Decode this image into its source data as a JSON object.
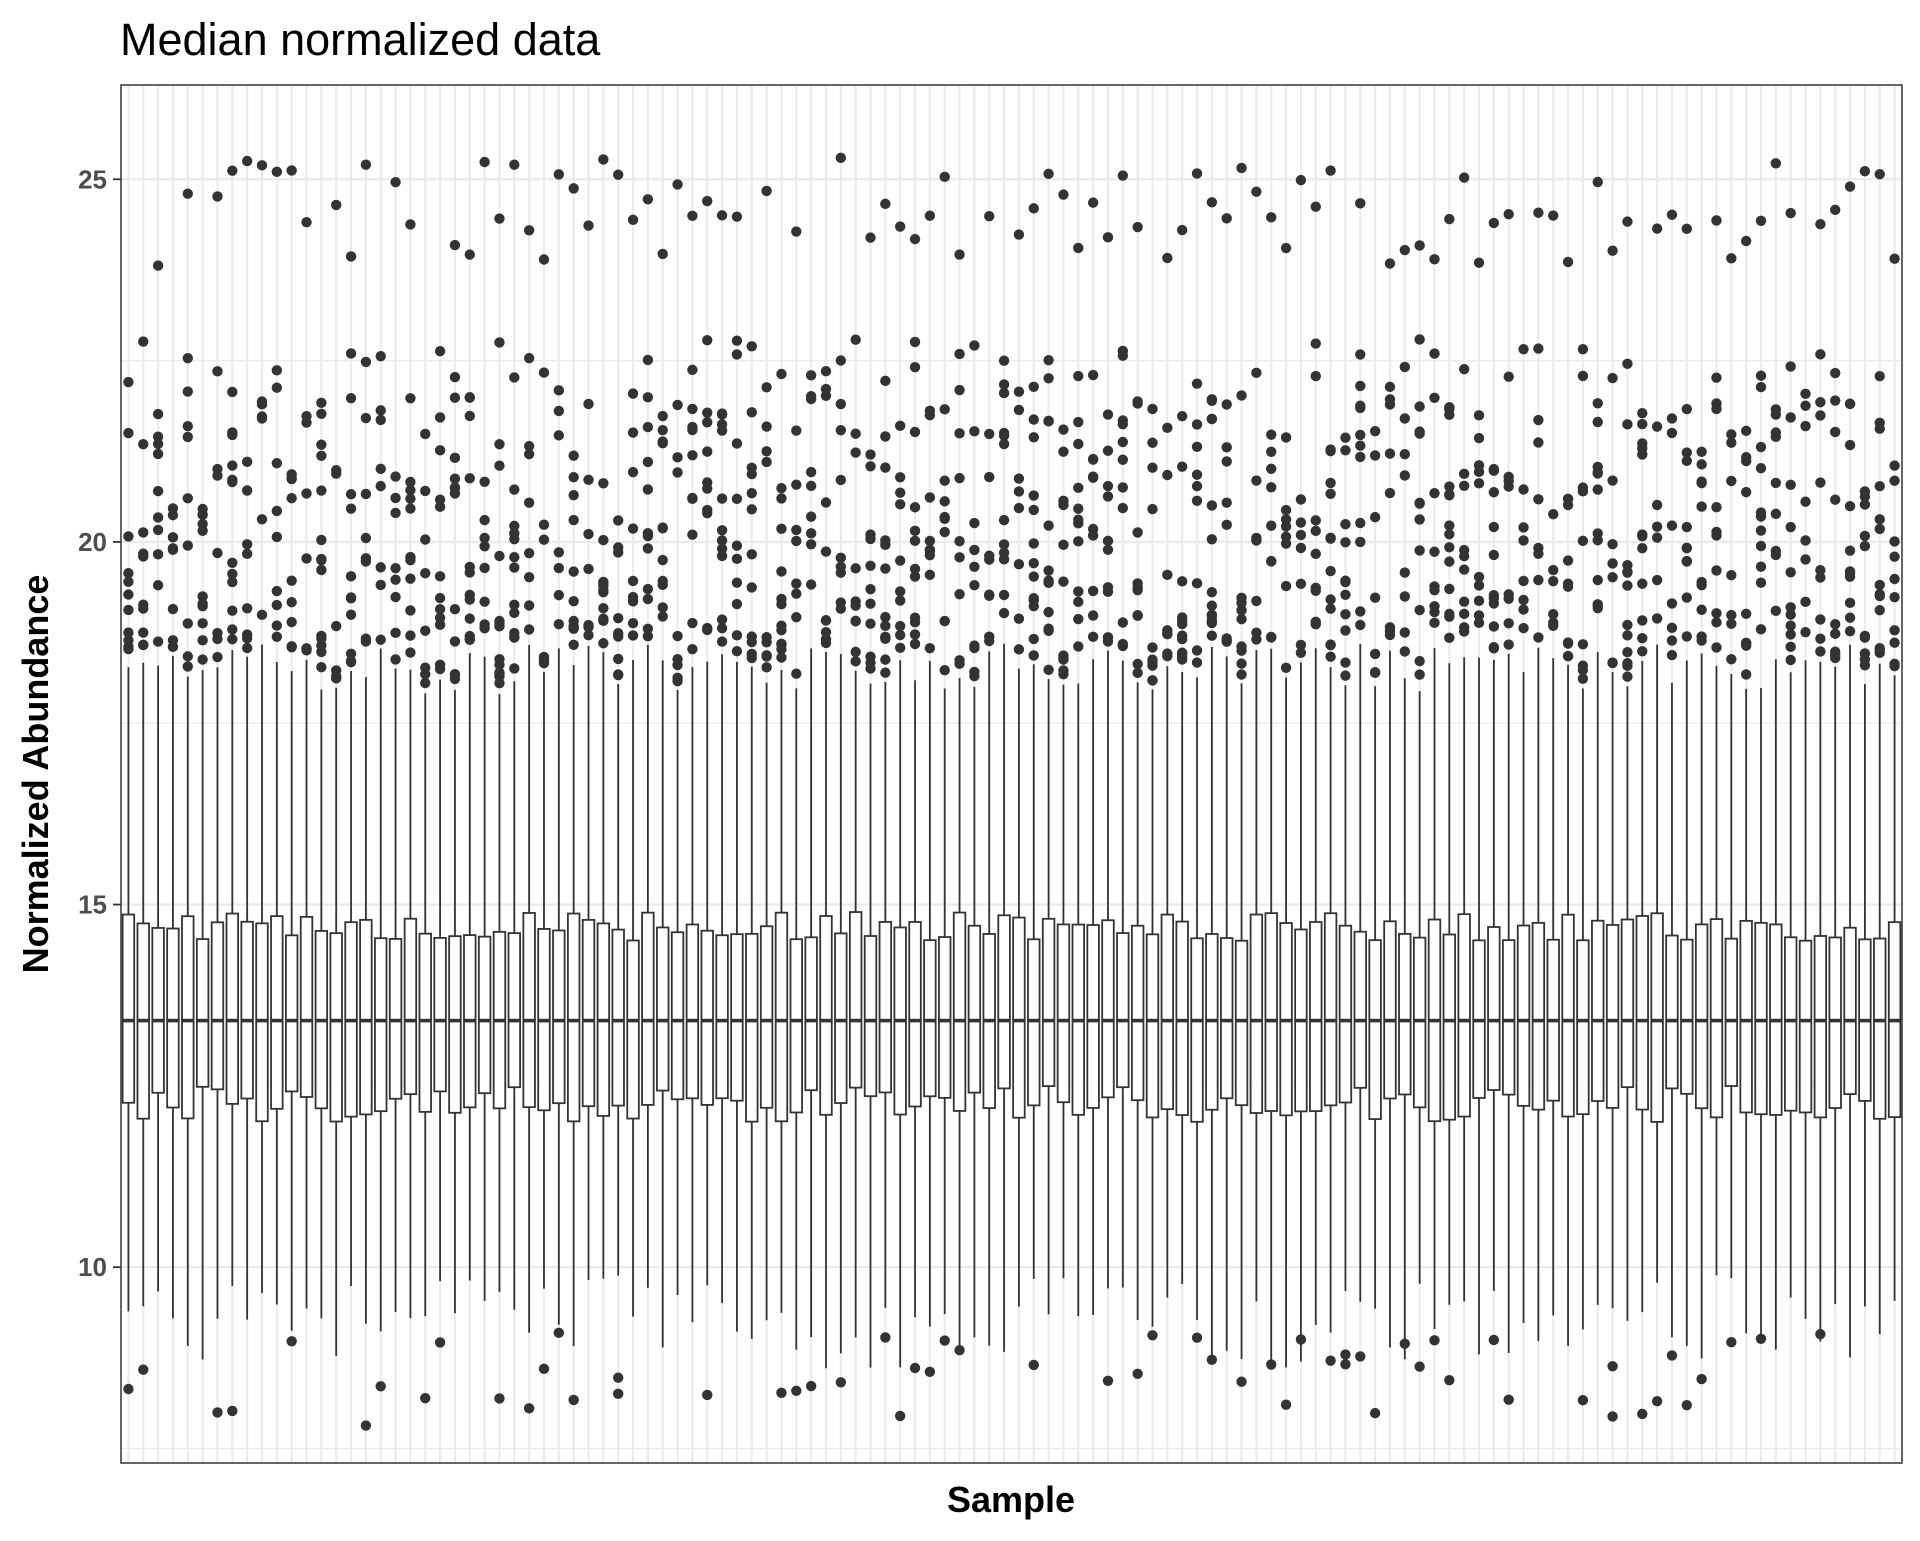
{
  "chart_data": {
    "type": "box",
    "title": "Median normalized data",
    "xlabel": "Sample",
    "ylabel": "Normalized Abundance",
    "ylim": [
      7.3,
      26.3
    ],
    "yticks": [
      10,
      15,
      20,
      25
    ],
    "xticks": [],
    "grid": true,
    "legend": "none",
    "n_samples": 120,
    "box_summary": {
      "median": 13.4,
      "q1_range": [
        12.0,
        12.5
      ],
      "q3_range": [
        14.5,
        14.9
      ],
      "lower_whisker_range": [
        8.6,
        9.9
      ],
      "upper_whisker_range": [
        17.9,
        18.6
      ]
    },
    "outlier_bands": {
      "upper_cluster": [
        18.0,
        21.5
      ],
      "upper_sparse": [
        21.5,
        22.8
      ],
      "top": [
        23.8,
        25.3
      ],
      "low": [
        7.8,
        9.1
      ]
    },
    "colors": {
      "background": "#ffffff",
      "grid": "#ebebeb",
      "box_line": "#333333",
      "box_fill": "#ffffff",
      "outlier": "#333333",
      "panel_border": "#333333"
    }
  }
}
